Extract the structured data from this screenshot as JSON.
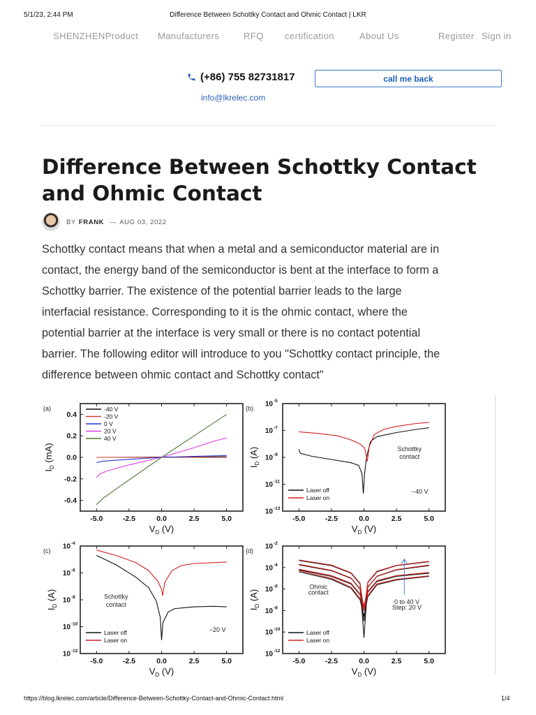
{
  "print_header": {
    "datetime": "5/1/23, 2:44 PM",
    "page_title": "Difference Between Schottky Contact and Ohmic Contact | LKR"
  },
  "nav": {
    "items": [
      "SHENZHENProduct",
      "Manufacturers",
      "RFQ",
      "certification",
      "About Us"
    ],
    "register": "Register",
    "sign_in": "Sign in"
  },
  "contact": {
    "phone_icon": "phone-icon",
    "phone": "(+86) 755 82731817",
    "call_me_back": "call me back",
    "email": "info@lkrelec.com"
  },
  "colors": {
    "accent": "#1d5fb8",
    "nav_text": "#9a9a9a"
  },
  "article": {
    "title_lines": [
      "Difference Between Schottky Contact",
      "and Ohmic Contact"
    ],
    "by": "BY",
    "author": "FRANK",
    "dash": "—",
    "date": "AUG 03, 2022",
    "body_lines": [
      "Schottky contact means that when a metal and a semiconductor material are in",
      "contact, the energy band of the semiconductor is bent at the interface to form a",
      "Schottky barrier. The existence of the potential barrier leads to the large",
      "interfacial resistance. Corresponding to it is the ohmic contact, where the",
      "potential barrier at the interface is very small or there is no contact potential",
      "barrier. The following editor will introduce to you \"Schottky contact principle, the",
      "difference between ohmic contact and Schottky contact\""
    ]
  },
  "chart_data": [
    {
      "type": "line",
      "panel": "(a)",
      "yscale": "linear",
      "xlabel": {
        "main": "V",
        "sub": "D",
        "unit": " (V)"
      },
      "ylabel": {
        "main": "I",
        "sub": "D",
        "unit": " (mA)"
      },
      "xlim": [
        -6.25,
        6.25
      ],
      "ylim": [
        -0.5,
        0.5
      ],
      "xticks": [
        "-5.0",
        "-2.5",
        "0.0",
        "2.5",
        "5.0"
      ],
      "yticks": [
        "-0.4",
        "-0.2",
        "0.0",
        "0.2",
        "0.4"
      ],
      "legend": "top-left",
      "annotations": [],
      "series": [
        {
          "name": "-40 V",
          "color": "#111111",
          "points": [
            [
              -5,
              0
            ],
            [
              5,
              0.005
            ]
          ]
        },
        {
          "name": "-20 V",
          "color": "#d9403a",
          "points": [
            [
              -5,
              0
            ],
            [
              5,
              0
            ]
          ]
        },
        {
          "name": "0 V",
          "color": "#2233cc",
          "points": [
            [
              -5,
              -0.05
            ],
            [
              -4.5,
              -0.035
            ],
            [
              -2.5,
              -0.018
            ],
            [
              0,
              0
            ],
            [
              2.5,
              0.01
            ],
            [
              5,
              0.017
            ]
          ]
        },
        {
          "name": "20 V",
          "color": "#e040e8",
          "points": [
            [
              -5,
              -0.19
            ],
            [
              -4.7,
              -0.15
            ],
            [
              -4,
              -0.12
            ],
            [
              -2.5,
              -0.07
            ],
            [
              0,
              0
            ],
            [
              2.5,
              0.09
            ],
            [
              4,
              0.15
            ],
            [
              5,
              0.18
            ]
          ]
        },
        {
          "name": "40 V",
          "color": "#4a7a30",
          "points": [
            [
              -5,
              -0.44
            ],
            [
              -4.5,
              -0.38
            ],
            [
              -2.5,
              -0.21
            ],
            [
              0,
              0
            ],
            [
              2.5,
              0.2
            ],
            [
              5,
              0.4
            ]
          ]
        }
      ]
    },
    {
      "type": "line",
      "panel": "(b)",
      "yscale": "log",
      "xlabel": {
        "main": "V",
        "sub": "D",
        "unit": " (V)"
      },
      "ylabel": {
        "main": "I",
        "sub": "D",
        "unit": " (A)"
      },
      "xlim": [
        -6.25,
        6.25
      ],
      "ylim": [
        1e-13,
        1e-05
      ],
      "xticks": [
        "-5.0",
        "-2.5",
        "0.0",
        "2.5",
        "5.0"
      ],
      "yticks_exp": [
        "-13",
        "-11",
        "-9",
        "-7",
        "-5"
      ],
      "legend": "bottom-left",
      "annotations": [
        {
          "text": "Schottky",
          "x": 3.5,
          "y": 3e-09
        },
        {
          "text": "contact",
          "x": 3.5,
          "y": 8e-10
        },
        {
          "text": "−40 V",
          "x": 4.3,
          "y": 2e-12
        }
      ],
      "series": [
        {
          "name": "Laser off",
          "color": "#111111",
          "points": [
            [
              -5,
              4e-09
            ],
            [
              -4.9,
              2e-09
            ],
            [
              -4,
              1.2e-09
            ],
            [
              -2.5,
              7e-10
            ],
            [
              -1,
              4e-10
            ],
            [
              -0.4,
              2.5e-10
            ],
            [
              -0.15,
              6e-11
            ],
            [
              -0.05,
              2e-12
            ],
            [
              0.05,
              6e-11
            ],
            [
              0.2,
              1e-09
            ],
            [
              0.5,
              1.5e-08
            ],
            [
              1,
              3.5e-08
            ],
            [
              2.5,
              7e-08
            ],
            [
              4,
              1.2e-07
            ],
            [
              5,
              1.6e-07
            ]
          ]
        },
        {
          "name": "Laser on",
          "color": "#d02020",
          "points": [
            [
              -5,
              8e-08
            ],
            [
              -3.5,
              6e-08
            ],
            [
              -2,
              4e-08
            ],
            [
              -1,
              2e-08
            ],
            [
              -0.3,
              1e-08
            ],
            [
              0.05,
              5e-09
            ],
            [
              0.25,
              5e-10
            ],
            [
              0.4,
              6e-09
            ],
            [
              0.8,
              5e-08
            ],
            [
              1.5,
              1.2e-07
            ],
            [
              2.5,
              2e-07
            ],
            [
              4,
              3.3e-07
            ],
            [
              5,
              4e-07
            ]
          ]
        }
      ]
    },
    {
      "type": "line",
      "panel": "(c)",
      "yscale": "log",
      "xlabel": {
        "main": "V",
        "sub": "D",
        "unit": " (V)"
      },
      "ylabel": {
        "main": "I",
        "sub": "D",
        "unit": " (A)"
      },
      "xlim": [
        -6.25,
        6.25
      ],
      "ylim": [
        1e-12,
        0.0001
      ],
      "xticks": [
        "-5.0",
        "-2.5",
        "0.0",
        "2.5",
        "5.0"
      ],
      "yticks_exp": [
        "-12",
        "-10",
        "-8",
        "-6",
        "-4"
      ],
      "legend": "bottom-left",
      "annotations": [
        {
          "text": "Schottky",
          "x": -3.5,
          "y": 1.2e-08
        },
        {
          "text": "contact",
          "x": -3.5,
          "y": 3e-09
        },
        {
          "text": "−20 V",
          "x": 4.3,
          "y": 4e-11
        }
      ],
      "series": [
        {
          "name": "Laser off",
          "color": "#111111",
          "points": [
            [
              -5,
              2e-05
            ],
            [
              -3.5,
              4e-06
            ],
            [
              -2,
              5e-07
            ],
            [
              -1,
              8e-08
            ],
            [
              -0.4,
              8e-09
            ],
            [
              -0.1,
              5e-10
            ],
            [
              0,
              1e-11
            ],
            [
              0.1,
              2e-10
            ],
            [
              0.5,
              1.2e-09
            ],
            [
              1,
              2.2e-09
            ],
            [
              2.5,
              3e-09
            ],
            [
              4,
              3.3e-09
            ],
            [
              5,
              3e-09
            ]
          ]
        },
        {
          "name": "Laser on",
          "color": "#d02020",
          "points": [
            [
              -5,
              5e-05
            ],
            [
              -3.5,
              2e-05
            ],
            [
              -2,
              6e-06
            ],
            [
              -1,
              1.5e-06
            ],
            [
              -0.3,
              2.5e-07
            ],
            [
              0,
              6e-08
            ],
            [
              0.08,
              2e-08
            ],
            [
              0.25,
              2e-07
            ],
            [
              0.8,
              1.5e-06
            ],
            [
              1.5,
              3.5e-06
            ],
            [
              2.5,
              5e-06
            ],
            [
              5,
              6.5e-06
            ]
          ]
        }
      ]
    },
    {
      "type": "line",
      "panel": "(d)",
      "yscale": "log",
      "xlabel": {
        "main": "V",
        "sub": "D",
        "unit": " (V)"
      },
      "ylabel": {
        "main": "I",
        "sub": "D",
        "unit": " (A)"
      },
      "xlim": [
        -6.25,
        6.25
      ],
      "ylim": [
        1e-12,
        0.01
      ],
      "xticks": [
        "-5.0",
        "-2.5",
        "0.0",
        "2.5",
        "5.0"
      ],
      "yticks_exp": [
        "-12",
        "-10",
        "-8",
        "-6",
        "-4",
        "-2"
      ],
      "legend": "bottom-left",
      "annotations": [
        {
          "text": "Ohmic",
          "x": -3.5,
          "y": 1e-06
        },
        {
          "text": "contact",
          "x": -3.5,
          "y": 3e-07
        },
        {
          "text": "0 to 40 V",
          "x": 3.3,
          "y": 4e-08
        },
        {
          "text": "Step: 20 V",
          "x": 3.3,
          "y": 1.2e-08
        }
      ],
      "arrow": {
        "x": 3.1,
        "from": 3e-07,
        "to": 0.0006,
        "color": "#4a7bd0"
      },
      "series": [
        {
          "name": "Laser off",
          "color": "#111111",
          "curves": [
            [
              [
                -5,
                0.00045
              ],
              [
                -2.5,
                0.00015
              ],
              [
                -1,
                3e-05
              ],
              [
                -0.3,
                3e-06
              ],
              [
                0,
                3e-11
              ],
              [
                0.3,
                4e-06
              ],
              [
                1,
                4e-05
              ],
              [
                2.5,
                0.00015
              ],
              [
                5,
                0.00035
              ]
            ],
            [
              [
                -5,
                0.00018
              ],
              [
                -2.5,
                5e-05
              ],
              [
                -1,
                1e-05
              ],
              [
                -0.3,
                1e-06
              ],
              [
                0,
                1e-09
              ],
              [
                0.3,
                1.5e-06
              ],
              [
                1,
                1.5e-05
              ],
              [
                2.5,
                6e-05
              ],
              [
                5,
                0.00015
              ]
            ],
            [
              [
                -5,
                6e-05
              ],
              [
                -2.5,
                1.5e-05
              ],
              [
                -1,
                3e-06
              ],
              [
                -0.3,
                3e-07
              ],
              [
                0,
                1e-08
              ],
              [
                0.3,
                5e-07
              ],
              [
                1,
                5e-06
              ],
              [
                2.5,
                1.5e-05
              ],
              [
                5,
                3e-05
              ]
            ],
            [
              [
                -5,
                4e-05
              ],
              [
                -2.5,
                8e-06
              ],
              [
                -1,
                1.2e-06
              ],
              [
                -0.3,
                1e-07
              ],
              [
                0,
                3e-09
              ],
              [
                0.3,
                2e-07
              ],
              [
                1,
                2.5e-06
              ],
              [
                2.5,
                7e-06
              ],
              [
                5,
                1.5e-05
              ]
            ]
          ]
        },
        {
          "name": "Laser on",
          "color": "#d02020",
          "curves": [
            [
              [
                -5,
                0.0005
              ],
              [
                -2.5,
                0.00017
              ],
              [
                -1,
                3.3e-05
              ],
              [
                -0.3,
                3.5e-06
              ],
              [
                0,
                1e-08
              ],
              [
                0.3,
                4.5e-06
              ],
              [
                1,
                4.5e-05
              ],
              [
                2.5,
                0.00016
              ],
              [
                5,
                0.00038
              ]
            ],
            [
              [
                -5,
                0.0002
              ],
              [
                -2.5,
                5.5e-05
              ],
              [
                -1,
                1.1e-05
              ],
              [
                -0.3,
                1.1e-06
              ],
              [
                0,
                2e-08
              ],
              [
                0.3,
                1.6e-06
              ],
              [
                1,
                1.6e-05
              ],
              [
                2.5,
                6.5e-05
              ],
              [
                5,
                0.00017
              ]
            ],
            [
              [
                -5,
                7e-05
              ],
              [
                -2.5,
                1.8e-05
              ],
              [
                -1,
                3.5e-06
              ],
              [
                -0.3,
                3.5e-07
              ],
              [
                0,
                3e-08
              ],
              [
                0.3,
                6e-07
              ],
              [
                1,
                6e-06
              ],
              [
                2.5,
                1.8e-05
              ],
              [
                5,
                3.5e-05
              ]
            ],
            [
              [
                -5,
                5e-05
              ],
              [
                -2.5,
                1e-05
              ],
              [
                -1,
                1.5e-06
              ],
              [
                -0.3,
                1.3e-07
              ],
              [
                0,
                1e-08
              ],
              [
                0.3,
                2.5e-07
              ],
              [
                1,
                3e-06
              ],
              [
                2.5,
                8e-06
              ],
              [
                5,
                1.7e-05
              ]
            ]
          ]
        }
      ]
    }
  ],
  "print_footer": {
    "url": "https://blog.lkrelec.com/article/Difference-Between-Schottky-Contact-and-Ohmic-Contact.html",
    "page": "1/4"
  }
}
